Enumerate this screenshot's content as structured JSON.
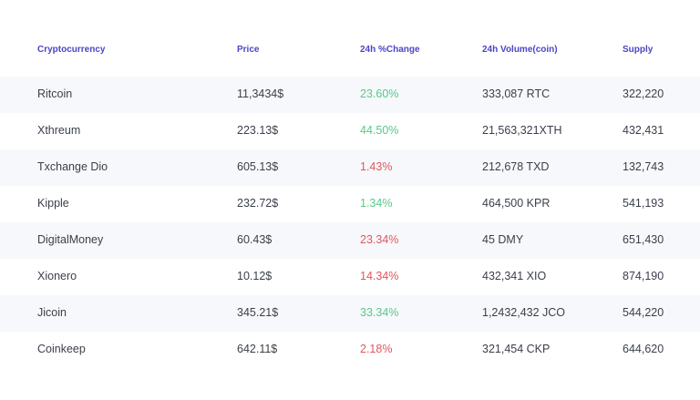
{
  "columns": {
    "name": "Cryptocurrency",
    "price": "Price",
    "change": "24h %Change",
    "volume": "24h Volume(coin)",
    "supply": "Supply"
  },
  "rows": [
    {
      "name": "Ritcoin",
      "price": "11,3434$",
      "change": "23.60%",
      "trend": "up",
      "volume": "333,087 RTC",
      "supply": "322,220"
    },
    {
      "name": "Xthreum",
      "price": "223.13$",
      "change": "44.50%",
      "trend": "up",
      "volume": "21,563,321XTH",
      "supply": "432,431"
    },
    {
      "name": "Txchange Dio",
      "price": "605.13$",
      "change": "1.43%",
      "trend": "down",
      "volume": "212,678 TXD",
      "supply": "132,743"
    },
    {
      "name": "Kipple",
      "price": "232.72$",
      "change": "1.34%",
      "trend": "up",
      "volume": "464,500 KPR",
      "supply": "541,193"
    },
    {
      "name": "DigitalMoney",
      "price": "60.43$",
      "change": "23.34%",
      "trend": "down",
      "volume": "45 DMY",
      "supply": "651,430"
    },
    {
      "name": "Xionero",
      "price": "10.12$",
      "change": "14.34%",
      "trend": "down",
      "volume": "432,341 XIO",
      "supply": "874,190"
    },
    {
      "name": "Jicoin",
      "price": "345.21$",
      "change": "33.34%",
      "trend": "up",
      "volume": "1,2432,432 JCO",
      "supply": "544,220"
    },
    {
      "name": "Coinkeep",
      "price": "642.11$",
      "change": "2.18%",
      "trend": "down",
      "volume": "321,454 CKP",
      "supply": "644,620"
    }
  ],
  "colors": {
    "header_text": "#4b45c6",
    "positive": "#57c98a",
    "negative": "#e0575f",
    "row_shade": "#f7f8fb"
  }
}
